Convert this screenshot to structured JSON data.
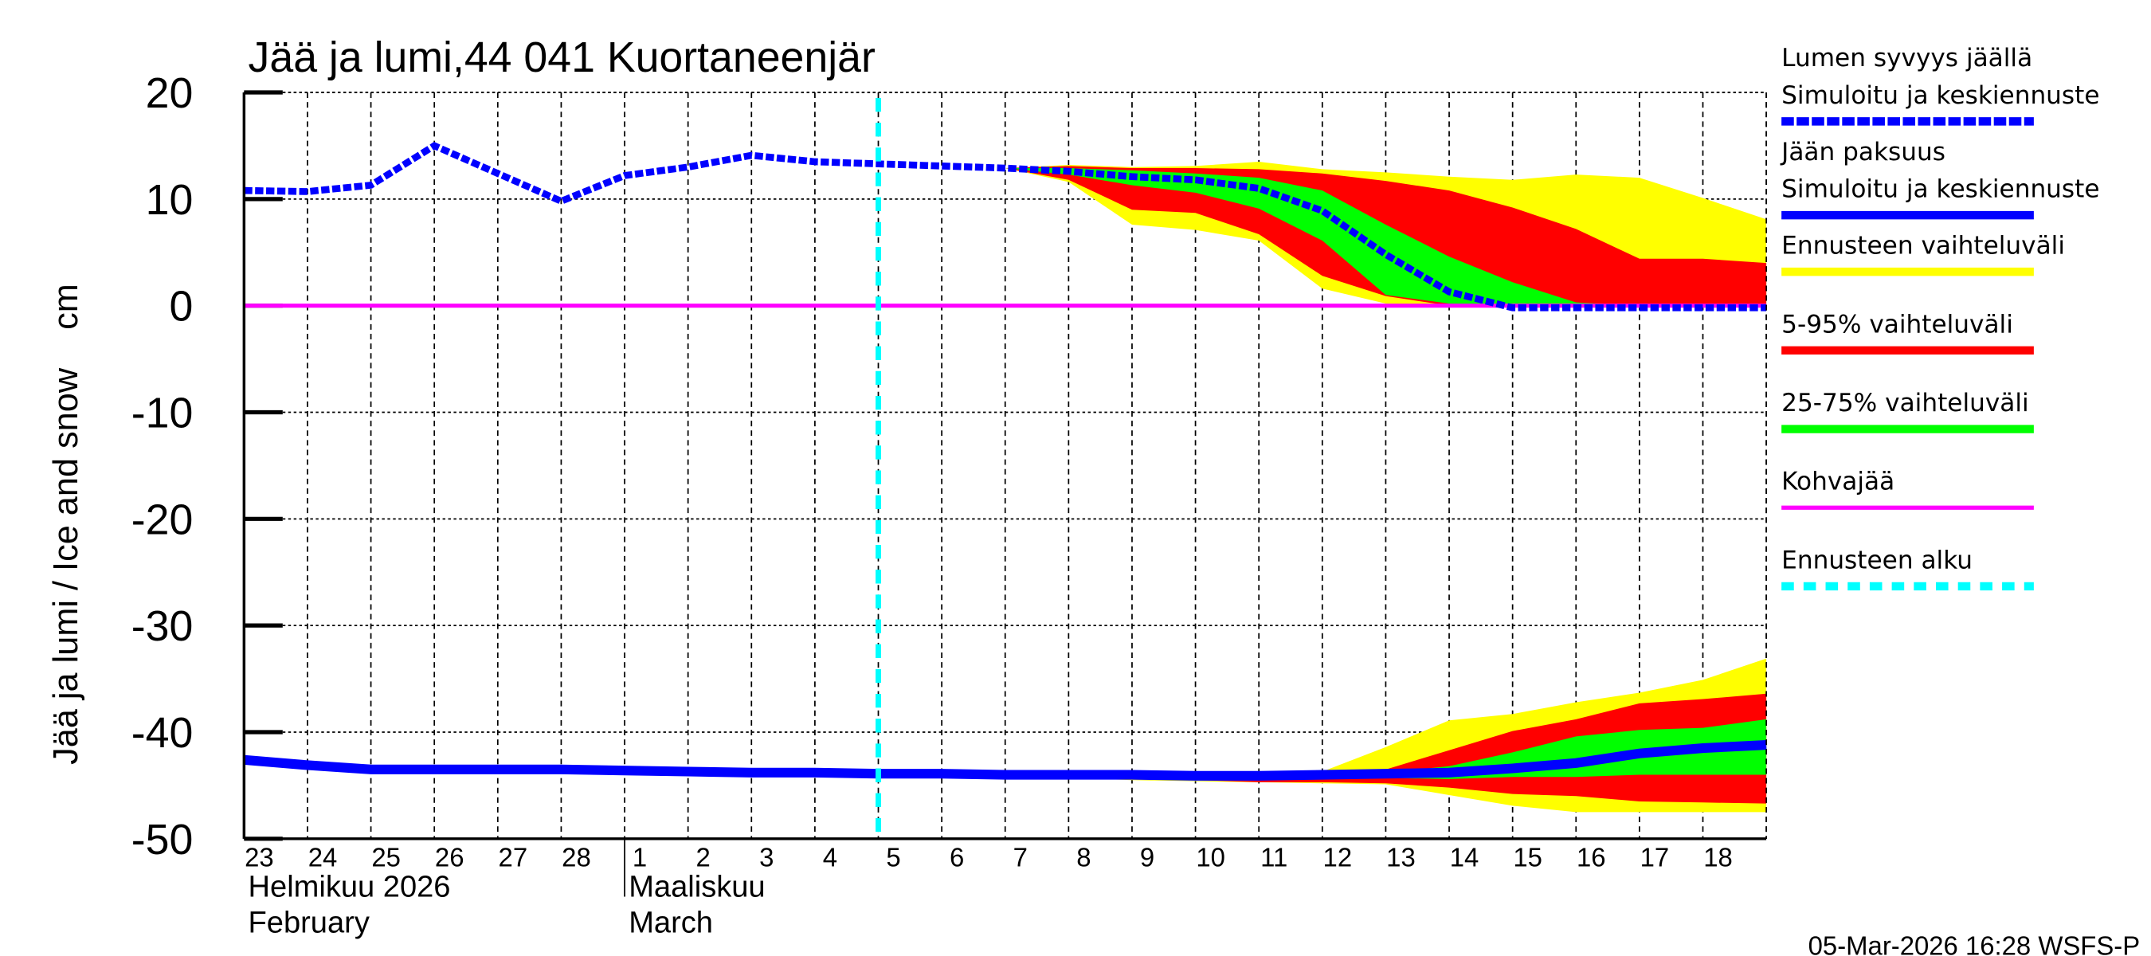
{
  "chart_data": {
    "type": "area",
    "title": "Jää ja lumi,44 041 Kuortaneenjär",
    "ylabel": "Jää ja lumi / Ice and snow    cm",
    "ylim": [
      -50,
      20
    ],
    "yticks": [
      20,
      10,
      0,
      -10,
      -20,
      -30,
      -40,
      -50
    ],
    "grid": true,
    "legend_placement": "right",
    "x": [
      "2026-02-23",
      "2026-02-24",
      "2026-02-25",
      "2026-02-26",
      "2026-02-27",
      "2026-02-28",
      "2026-03-01",
      "2026-03-02",
      "2026-03-03",
      "2026-03-04",
      "2026-03-05",
      "2026-03-06",
      "2026-03-07",
      "2026-03-08",
      "2026-03-09",
      "2026-03-10",
      "2026-03-11",
      "2026-03-12",
      "2026-03-13",
      "2026-03-14",
      "2026-03-15",
      "2026-03-16",
      "2026-03-17",
      "2026-03-18",
      "2026-03-19"
    ],
    "xtick_labels": [
      "23",
      "24",
      "25",
      "26",
      "27",
      "28",
      "1",
      "2",
      "3",
      "4",
      "5",
      "6",
      "7",
      "8",
      "9",
      "10",
      "11",
      "12",
      "13",
      "14",
      "15",
      "16",
      "17",
      "18"
    ],
    "month_labels": [
      {
        "line1": "Helmikuu  2026",
        "line2": "February",
        "date": "2026-02-23"
      },
      {
        "line1": "Maaliskuu",
        "line2": "March",
        "date": "2026-03-01"
      }
    ],
    "forecast_start": "2026-03-05",
    "band_start": "2026-03-07",
    "snow": {
      "name": "Lumen syvyys jäällä",
      "median": [
        10.8,
        10.7,
        11.3,
        15.0,
        12.4,
        9.8,
        12.2,
        13.0,
        14.1,
        13.5,
        13.3,
        13.1,
        12.9,
        12.6,
        12.1,
        11.8,
        11.0,
        8.9,
        4.8,
        1.3,
        -0.2,
        -0.2,
        -0.2,
        -0.2,
        -0.2
      ],
      "range_low": [
        12.9,
        11.6,
        7.6,
        7.1,
        6.1,
        1.6,
        0.2,
        0,
        0,
        0,
        0,
        0,
        0
      ],
      "range_high": [
        12.9,
        13.2,
        13.0,
        13.1,
        13.5,
        12.8,
        12.5,
        12.1,
        11.8,
        12.3,
        12.0,
        10.1,
        8.1
      ],
      "p5": [
        12.9,
        11.8,
        9.0,
        8.7,
        6.7,
        2.8,
        0.9,
        0,
        0,
        0,
        0,
        0,
        0
      ],
      "p95": [
        12.9,
        13.1,
        12.9,
        12.9,
        12.8,
        12.4,
        11.7,
        10.8,
        9.2,
        7.2,
        4.4,
        4.4,
        4.0
      ],
      "p25": [
        12.9,
        12.3,
        11.3,
        10.6,
        9.1,
        6.1,
        1.0,
        0.2,
        0,
        0,
        0,
        0,
        0
      ],
      "p75": [
        12.9,
        12.9,
        12.7,
        12.4,
        12.0,
        10.8,
        7.6,
        4.6,
        2.2,
        0.3,
        0,
        0,
        0
      ]
    },
    "ice": {
      "name": "Jään paksuus",
      "median": [
        -42.6,
        -43.1,
        -43.5,
        -43.5,
        -43.5,
        -43.5,
        -43.6,
        -43.7,
        -43.8,
        -43.8,
        -43.9,
        -43.9,
        -44.0,
        -44.0,
        -44.0,
        -44.1,
        -44.1,
        -44.0,
        -43.9,
        -43.8,
        -43.4,
        -42.9,
        -42.0,
        -41.5,
        -41.2
      ],
      "range_low": [
        -44.0,
        -44.3,
        -44.5,
        -44.6,
        -44.7,
        -44.8,
        -44.9,
        -45.9,
        -46.9,
        -47.5,
        -47.5,
        -47.5,
        -47.5
      ],
      "range_high": [
        -44.0,
        -43.9,
        -43.9,
        -43.9,
        -43.9,
        -43.7,
        -41.4,
        -38.9,
        -38.3,
        -37.2,
        -36.3,
        -35.1,
        -33.1
      ],
      "p5": [
        -44.0,
        -44.2,
        -44.3,
        -44.5,
        -44.7,
        -44.7,
        -44.8,
        -45.2,
        -45.8,
        -46.0,
        -46.5,
        -46.6,
        -46.7
      ],
      "p95": [
        -44.0,
        -43.9,
        -43.9,
        -44.0,
        -44.0,
        -44.0,
        -43.5,
        -41.7,
        -39.9,
        -38.8,
        -37.3,
        -36.9,
        -36.4
      ],
      "p25": [
        -44.0,
        -44.1,
        -44.1,
        -44.2,
        -44.2,
        -44.3,
        -44.3,
        -44.4,
        -44.2,
        -44.2,
        -44.0,
        -44.0,
        -44.0
      ],
      "p75": [
        -44.0,
        -44.0,
        -44.0,
        -44.0,
        -44.0,
        -44.0,
        -43.8,
        -43.2,
        -41.9,
        -40.4,
        -39.8,
        -39.6,
        -38.8
      ]
    },
    "slush_ice_level": 0,
    "legend": [
      {
        "label": "Lumen syvyys jäällä",
        "label2": "Simuloitu ja keskiennuste",
        "color": "#0000ff",
        "style": "dashed"
      },
      {
        "label": "Jään paksuus",
        "label2": "Simuloitu ja keskiennuste",
        "color": "#0000ff",
        "style": "solid"
      },
      {
        "label": "Ennusteen vaihteluväli",
        "color": "#ffff00",
        "style": "solid"
      },
      {
        "label": "5-95% vaihteluväli",
        "color": "#ff0000",
        "style": "solid"
      },
      {
        "label": "25-75% vaihteluväli",
        "color": "#00ff00",
        "style": "solid"
      },
      {
        "label": "Kohvajää",
        "color": "#ff00ff",
        "style": "thin"
      },
      {
        "label": "Ennusteen alku",
        "color": "#00ffff",
        "style": "dashed"
      }
    ],
    "colors": {
      "range": "#ffff00",
      "p5_95": "#ff0000",
      "p25_75": "#00ff00",
      "median": "#0000ff",
      "slush": "#ff00ff",
      "forecast_start": "#00ffff"
    }
  },
  "footer": "05-Mar-2026 16:28 WSFS-P"
}
